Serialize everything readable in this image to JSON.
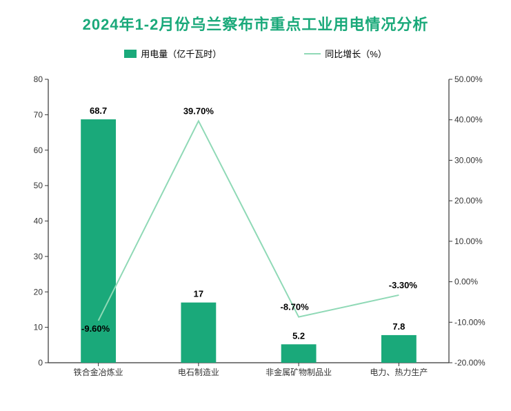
{
  "title": {
    "text": "2024年1-2月份乌兰察布市重点工业用电情况分析",
    "color": "#1aa97a",
    "fontsize": 22
  },
  "legend": {
    "bar_label": "用电量（亿千瓦时）",
    "line_label": "同比增长（%）",
    "bar_color": "#1aa97a",
    "line_color": "#8fd9b6",
    "text_color": "#333333"
  },
  "chart": {
    "type": "bar+line",
    "categories": [
      "铁合金冶炼业",
      "电石制造业",
      "非金属矿物制品业",
      "电力、热力生产"
    ],
    "bar_values": [
      68.7,
      17,
      5.2,
      7.8
    ],
    "bar_labels": [
      "68.7",
      "17",
      "5.2",
      "7.8"
    ],
    "line_values": [
      -9.6,
      39.7,
      -8.7,
      -3.3
    ],
    "line_labels": [
      "-9.60%",
      "39.70%",
      "-8.70%",
      "-3.30%"
    ],
    "bar_color": "#1aa97a",
    "line_color": "#8fd9b6",
    "line_width": 2,
    "bar_width_ratio": 0.35,
    "y_left": {
      "min": 0,
      "max": 80,
      "step": 10,
      "ticks": [
        "0",
        "10",
        "20",
        "30",
        "40",
        "50",
        "60",
        "70",
        "80"
      ]
    },
    "y_right": {
      "min": -20,
      "max": 50,
      "step": 10,
      "ticks": [
        "-20.00%",
        "-10.00%",
        "0.00%",
        "10.00%",
        "20.00%",
        "30.00%",
        "40.00%",
        "50.00%"
      ]
    },
    "axis_color": "#333333",
    "tick_fontsize": 12,
    "label_fontsize": 13,
    "background": "#ffffff"
  }
}
